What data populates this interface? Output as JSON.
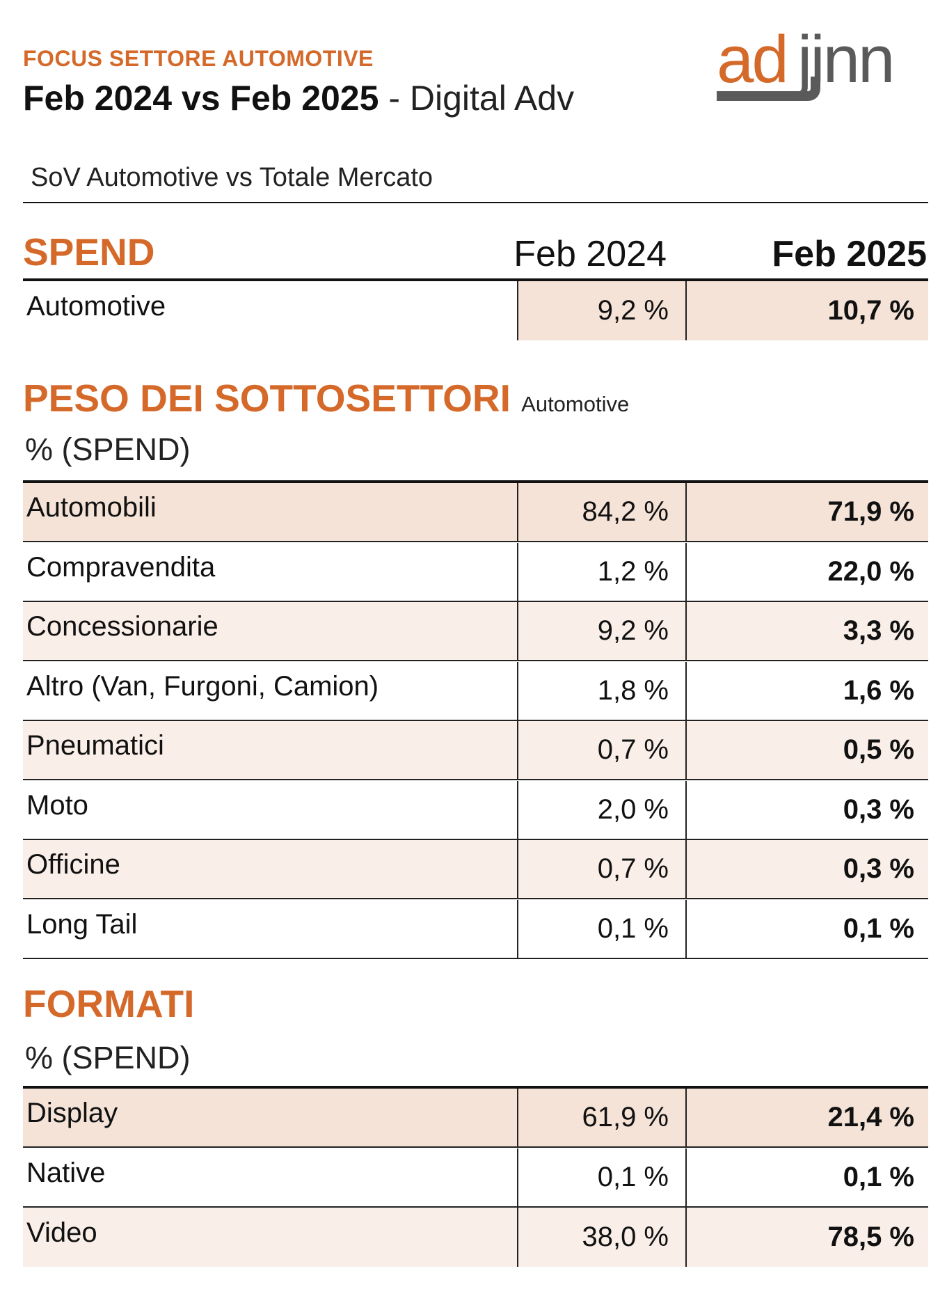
{
  "header": {
    "kicker": "FOCUS SETTORE AUTOMOTIVE",
    "title_main": "Feb 2024 vs Feb 2025",
    "title_sub": " - Digital Adv",
    "logo_text": "adjinn"
  },
  "sov": {
    "label": "SoV Automotive vs Totale Mercato",
    "section": "SPEND",
    "col1": "Feb 2024",
    "col2": "Feb 2025",
    "row": {
      "label": "Automotive",
      "v1": "9,2  %",
      "v2": "10,7  %"
    }
  },
  "subsectors": {
    "title": "PESO DEI SOTTOSETTORI",
    "title_note": "Automotive",
    "unit": "% (SPEND)",
    "rows": [
      {
        "label": "Automobili",
        "v1": "84,2 %",
        "v2": "71,9 %"
      },
      {
        "label": "Compravendita",
        "v1": "1,2 %",
        "v2": "22,0 %"
      },
      {
        "label": "Concessionarie",
        "v1": "9,2 %",
        "v2": "3,3 %"
      },
      {
        "label": "Altro (Van, Furgoni, Camion)",
        "v1": "1,8 %",
        "v2": "1,6 %"
      },
      {
        "label": "Pneumatici",
        "v1": "0,7 %",
        "v2": "0,5 %"
      },
      {
        "label": "Moto",
        "v1": "2,0 %",
        "v2": "0,3 %"
      },
      {
        "label": "Officine",
        "v1": "0,7 %",
        "v2": "0,3 %"
      },
      {
        "label": "Long Tail",
        "v1": "0,1 %",
        "v2": "0,1 %"
      }
    ]
  },
  "formats": {
    "title": "FORMATI",
    "unit": "% (SPEND)",
    "rows": [
      {
        "label": "Display",
        "v1": "61,9 %",
        "v2": "21,4 %"
      },
      {
        "label": "Native",
        "v1": "0,1 %",
        "v2": "0,1 %"
      },
      {
        "label": "Video",
        "v1": "38,0 %",
        "v2": "78,5 %"
      }
    ]
  },
  "colors": {
    "accent": "#d4692a",
    "logo_gray": "#5a5a5a",
    "row_dark": "#f5e3d8",
    "row_light": "#f9eee8"
  }
}
